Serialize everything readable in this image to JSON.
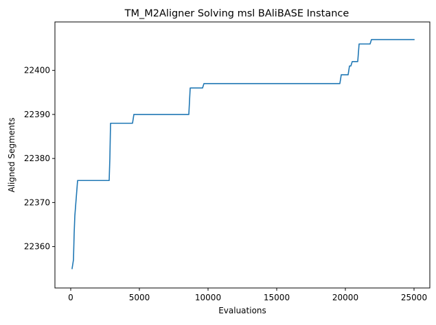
{
  "chart_data": {
    "type": "line",
    "title": "TM_M2Aligner Solving msl BAliBASE Instance",
    "xlabel": "Evaluations",
    "ylabel": "Aligned Segments",
    "xlim": [
      -1150,
      26150
    ],
    "ylim": [
      22350.6,
      22411.0
    ],
    "xticks": [
      0,
      5000,
      10000,
      15000,
      20000,
      25000
    ],
    "xtick_labels": [
      "0",
      "5000",
      "10000",
      "15000",
      "20000",
      "25000"
    ],
    "yticks": [
      22360,
      22370,
      22380,
      22390,
      22400
    ],
    "ytick_labels": [
      "22360",
      "22370",
      "22380",
      "22390",
      "22400"
    ],
    "grid": false,
    "series": [
      {
        "color": "#1f77b4",
        "x": [
          100,
          200,
          250,
          300,
          350,
          400,
          500,
          2800,
          2850,
          2900,
          3000,
          4500,
          4600,
          8600,
          8700,
          9600,
          9700,
          19600,
          19700,
          20200,
          20300,
          20400,
          20500,
          20900,
          21000,
          21800,
          21900,
          25000
        ],
        "y": [
          22355,
          22357,
          22363,
          22367,
          22369,
          22371,
          22375,
          22375,
          22380,
          22388,
          22388,
          22388,
          22390,
          22390,
          22396,
          22396,
          22397,
          22397,
          22399,
          22399,
          22401,
          22401,
          22402,
          22402,
          22406,
          22406,
          22407,
          22407
        ]
      }
    ]
  }
}
